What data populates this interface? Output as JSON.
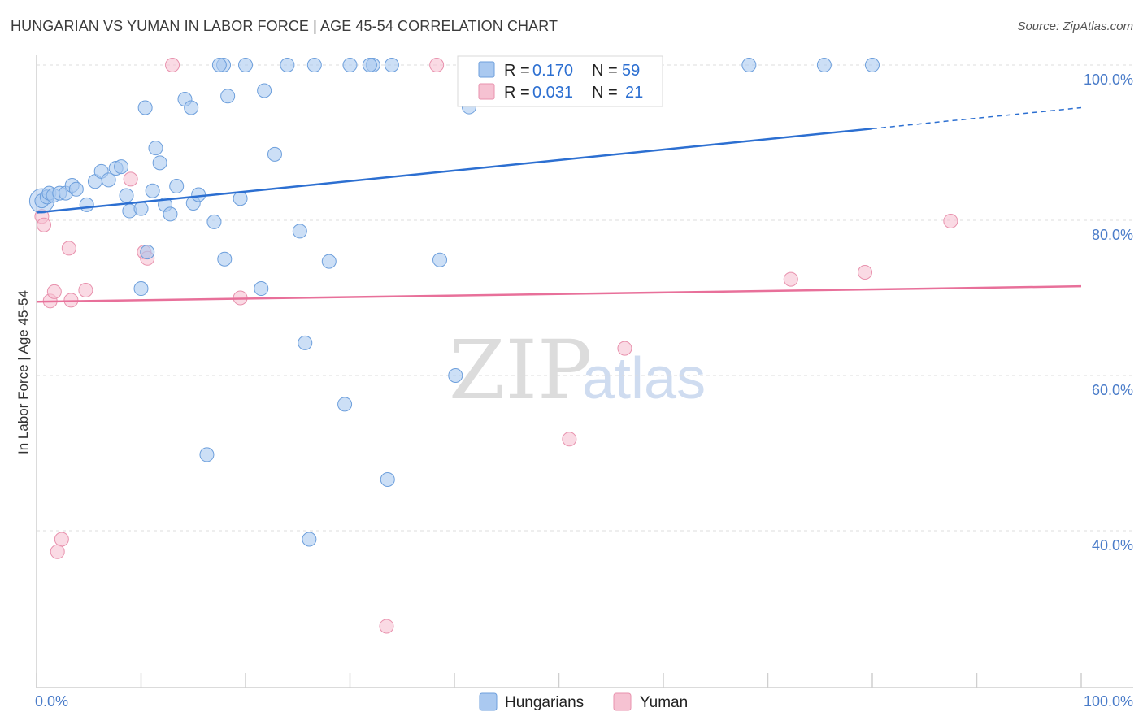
{
  "title": "HUNGARIAN VS YUMAN IN LABOR FORCE | AGE 45-54 CORRELATION CHART",
  "source": "Source: ZipAtlas.com",
  "watermark": {
    "zip": "ZIP",
    "atlas": "atlas"
  },
  "colors": {
    "hungarians_fill": "#aac9f0",
    "hungarians_stroke": "#6d9fdc",
    "hungarians_line": "#2c6fd1",
    "yuman_fill": "#f6c2d2",
    "yuman_stroke": "#e891ad",
    "yuman_line": "#e8709a",
    "grid": "#dddddd",
    "axis_text": "#4a7cc9"
  },
  "legend": {
    "rows": [
      {
        "r_label": "R =",
        "r_value": "0.170",
        "n_label": "N =",
        "n_value": "59"
      },
      {
        "r_label": "R =",
        "r_value": "0.031",
        "n_label": "N =",
        "n_value": "21"
      }
    ]
  },
  "chart_data": {
    "type": "scatter",
    "title": "HUNGARIAN VS YUMAN IN LABOR FORCE | AGE 45-54 CORRELATION CHART",
    "xlabel": "",
    "ylabel": "In Labor Force | Age 45-54",
    "xlim": [
      0,
      100
    ],
    "ylim": [
      20,
      102
    ],
    "x_tick_labels": [
      "0.0%",
      "100.0%"
    ],
    "y_ticks": [
      40,
      60,
      80,
      100
    ],
    "y_tick_labels": [
      "40.0%",
      "60.0%",
      "80.0%",
      "100.0%"
    ],
    "grid": true,
    "legend_position": "top-center",
    "series": [
      {
        "name": "Hungarians",
        "r": 0.17,
        "n": 59,
        "trend": {
          "x0": 0,
          "y0": 81.0,
          "x1": 80,
          "y1": 91.8,
          "dashed_to_x": 100,
          "dashed_to_y": 94.5
        },
        "points": [
          [
            0.5,
            82.5
          ],
          [
            1.0,
            83.0
          ],
          [
            1.2,
            83.5
          ],
          [
            1.6,
            83.2
          ],
          [
            2.2,
            83.5
          ],
          [
            2.8,
            83.5
          ],
          [
            3.4,
            84.5
          ],
          [
            3.8,
            84.0
          ],
          [
            4.8,
            82.0
          ],
          [
            5.6,
            85.0
          ],
          [
            6.2,
            86.3
          ],
          [
            6.9,
            85.2
          ],
          [
            7.6,
            86.7
          ],
          [
            8.1,
            86.9
          ],
          [
            8.6,
            83.2
          ],
          [
            8.9,
            81.2
          ],
          [
            10.0,
            81.5
          ],
          [
            10.0,
            71.2
          ],
          [
            10.6,
            75.9
          ],
          [
            10.4,
            94.5
          ],
          [
            11.1,
            83.8
          ],
          [
            11.4,
            89.3
          ],
          [
            11.8,
            87.4
          ],
          [
            12.3,
            82.0
          ],
          [
            12.8,
            80.8
          ],
          [
            13.4,
            84.4
          ],
          [
            14.2,
            95.6
          ],
          [
            14.8,
            94.5
          ],
          [
            15.0,
            82.2
          ],
          [
            15.5,
            83.3
          ],
          [
            16.3,
            49.8
          ],
          [
            17.0,
            79.8
          ],
          [
            18.0,
            75.0
          ],
          [
            18.3,
            96.0
          ],
          [
            17.9,
            100
          ],
          [
            20.0,
            100
          ],
          [
            19.5,
            82.8
          ],
          [
            21.5,
            71.2
          ],
          [
            21.8,
            96.7
          ],
          [
            22.8,
            88.5
          ],
          [
            24.0,
            100
          ],
          [
            25.2,
            78.6
          ],
          [
            25.7,
            64.2
          ],
          [
            26.1,
            38.9
          ],
          [
            26.6,
            100
          ],
          [
            28.0,
            74.7
          ],
          [
            29.5,
            56.3
          ],
          [
            30.0,
            100
          ],
          [
            32.2,
            100
          ],
          [
            31.9,
            100
          ],
          [
            33.6,
            46.6
          ],
          [
            34.0,
            100
          ],
          [
            38.6,
            74.9
          ],
          [
            40.1,
            60.0
          ],
          [
            41.4,
            94.6
          ],
          [
            68.2,
            100
          ],
          [
            75.4,
            100
          ],
          [
            80.0,
            100
          ],
          [
            17.5,
            100
          ]
        ]
      },
      {
        "name": "Yuman",
        "r": 0.031,
        "n": 21,
        "trend": {
          "x0": 0,
          "y0": 69.5,
          "x1": 100,
          "y1": 71.5
        },
        "points": [
          [
            0.5,
            80.5
          ],
          [
            0.7,
            79.4
          ],
          [
            1.3,
            69.6
          ],
          [
            1.7,
            70.8
          ],
          [
            2.4,
            38.9
          ],
          [
            2.0,
            37.3
          ],
          [
            3.1,
            76.4
          ],
          [
            3.3,
            69.7
          ],
          [
            4.7,
            71.0
          ],
          [
            9.0,
            85.3
          ],
          [
            10.3,
            75.9
          ],
          [
            10.6,
            75.1
          ],
          [
            13.0,
            100
          ],
          [
            19.5,
            70.0
          ],
          [
            33.5,
            27.7
          ],
          [
            38.3,
            100
          ],
          [
            51.0,
            51.8
          ],
          [
            56.3,
            63.5
          ],
          [
            72.2,
            72.4
          ],
          [
            79.3,
            73.3
          ],
          [
            87.5,
            79.9
          ]
        ]
      }
    ]
  },
  "bottom_legend": {
    "items": [
      "Hungarians",
      "Yuman"
    ]
  }
}
